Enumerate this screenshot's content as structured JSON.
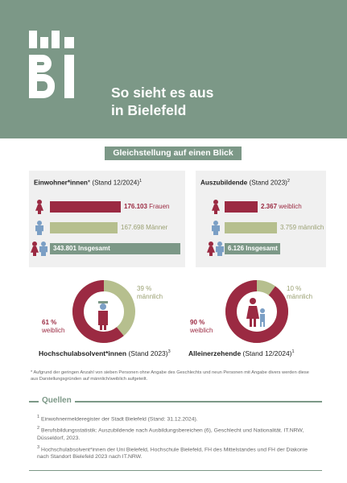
{
  "header": {
    "title_line1": "So sieht es aus",
    "title_line2": "in Bielefeld",
    "logo_text": "BI"
  },
  "badge": "Gleichstellung auf einen Blick",
  "colors": {
    "female": "#9b2a42",
    "male": "#b6bf8e",
    "total": "#7c9887",
    "header": "#7c9887"
  },
  "einwohner": {
    "title_bold": "Einwohner*innen",
    "title_rest": "* (Stand 12/2024)",
    "footnote_mark": "1",
    "female_value": "176.103",
    "female_label": "Frauen",
    "male_value": "167.698",
    "male_label": "Männer",
    "total_value": "343.801",
    "total_label": "Insgesamt",
    "female": 176103,
    "male": 167698,
    "total": 343801
  },
  "azubis": {
    "title_bold": "Auszubildende",
    "title_rest": " (Stand 2023)",
    "footnote_mark": "2",
    "female_value": "2.367",
    "female_label": "weiblich",
    "male_value": "3.759",
    "male_label": "männlich",
    "total_value": "6.126",
    "total_label": "Insgesamt",
    "female": 2367,
    "male": 3759,
    "total": 6126
  },
  "hochschul": {
    "title_bold": "Hochschulabsolvent*innen",
    "title_rest": " (Stand 2023)",
    "footnote_mark": "3",
    "female_pct": "61 %",
    "female_word": "weiblich",
    "male_pct": "39 %",
    "male_word": "männlich",
    "female_share": 0.61
  },
  "alleinerziehende": {
    "title_bold": "Alleinerzehende",
    "title_rest": " (Stand 12/2024)",
    "footnote_mark": "1",
    "female_pct": "90 %",
    "female_word": "weiblich",
    "male_pct": "10 %",
    "male_word": "männlich",
    "female_share": 0.9
  },
  "footnote": "* Aufgrund der geringen Anzahl von sieben Personen ohne Angabe des Geschlechts und neun Personen mit Angabe divers werden diese aus Darstellungsgründen auf männlich/weiblich aufgeteilt.",
  "quellen": {
    "title": "Quellen",
    "items": [
      {
        "mark": "1",
        "text": "Einwohnermelderegister der Stadt Bielefeld (Stand: 31.12.2024)."
      },
      {
        "mark": "2",
        "text": "Berufsbildungsstatistik: Auszubildende nach Ausbildungsbereichen (6), Geschlecht und Nationalität. IT.NRW, Düsseldorf, 2023."
      },
      {
        "mark": "3",
        "text": "Hochschulabsolvent*innen der Uni Bielefeld, Hochschule Bielefeld, FH des Mittelstandes und FH der Diakonie nach Standort Bielefeld 2023 nach IT.NRW."
      }
    ]
  }
}
